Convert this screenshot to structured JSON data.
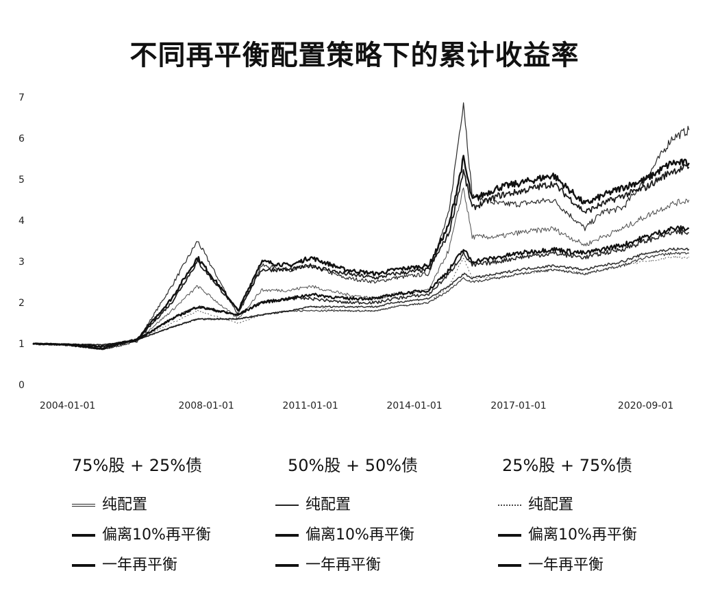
{
  "title": "不同再平衡配置策略下的累计收益率",
  "chart_data": {
    "type": "line",
    "title": "不同再平衡配置策略下的累计收益率",
    "xlabel": "",
    "ylabel": "",
    "ylim": [
      0,
      7
    ],
    "yticks": [
      "0",
      "1",
      "2",
      "3",
      "4",
      "5",
      "6",
      "7"
    ],
    "xticks": [
      "2004-01-01",
      "2008-01-01",
      "2011-01-01",
      "2014-01-01",
      "2017-01-01",
      "2020-09-01"
    ],
    "x_range": [
      "2003-01-01",
      "2021-12-31"
    ],
    "grid": false,
    "legend_placement": "bottom",
    "x": [
      "2003-01",
      "2004-01",
      "2005-01",
      "2006-01",
      "2007-01",
      "2007-10",
      "2008-12",
      "2009-08",
      "2010-06",
      "2011-01",
      "2012-01",
      "2012-12",
      "2013-06",
      "2014-06",
      "2015-01",
      "2015-06",
      "2015-09",
      "2016-06",
      "2017-01",
      "2018-01",
      "2018-12",
      "2019-06",
      "2020-01",
      "2020-09",
      "2021-06",
      "2021-12"
    ],
    "groups": [
      {
        "label": "75%股 + 25%债",
        "series": [
          {
            "name": "纯配置",
            "values": [
              1.0,
              0.97,
              0.85,
              1.05,
              2.4,
              3.5,
              1.7,
              2.9,
              2.8,
              2.9,
              2.6,
              2.5,
              2.6,
              2.7,
              4.2,
              6.9,
              4.6,
              4.4,
              4.4,
              4.5,
              3.8,
              4.2,
              4.3,
              5.0,
              6.0,
              6.2
            ]
          },
          {
            "name": "偏离10%再平衡",
            "values": [
              1.0,
              0.97,
              0.88,
              1.1,
              2.1,
              3.1,
              1.8,
              3.0,
              2.9,
              3.1,
              2.8,
              2.7,
              2.8,
              2.9,
              3.9,
              5.5,
              4.5,
              4.8,
              4.9,
              5.1,
              4.4,
              4.6,
              4.8,
              5.0,
              5.4,
              5.4
            ]
          },
          {
            "name": "一年再平衡",
            "values": [
              1.0,
              0.97,
              0.88,
              1.08,
              2.0,
              3.0,
              1.8,
              2.8,
              2.8,
              2.9,
              2.7,
              2.6,
              2.7,
              2.8,
              3.7,
              5.2,
              4.3,
              4.6,
              4.7,
              4.9,
              4.2,
              4.4,
              4.6,
              4.8,
              5.2,
              5.3
            ]
          }
        ]
      },
      {
        "label": "50%股 + 50%债",
        "series": [
          {
            "name": "纯配置",
            "values": [
              1.0,
              0.98,
              0.9,
              1.08,
              1.8,
              2.4,
              1.6,
              2.3,
              2.3,
              2.4,
              2.2,
              2.1,
              2.2,
              2.3,
              3.3,
              4.8,
              3.6,
              3.6,
              3.7,
              3.8,
              3.4,
              3.6,
              3.8,
              4.1,
              4.4,
              4.5
            ]
          },
          {
            "name": "偏离10%再平衡",
            "values": [
              1.0,
              0.98,
              0.93,
              1.1,
              1.6,
              1.9,
              1.7,
              2.0,
              2.1,
              2.2,
              2.1,
              2.1,
              2.2,
              2.3,
              2.8,
              3.3,
              3.0,
              3.1,
              3.2,
              3.3,
              3.2,
              3.3,
              3.4,
              3.6,
              3.8,
              3.8
            ]
          },
          {
            "name": "一年再平衡",
            "values": [
              1.0,
              0.98,
              0.92,
              1.09,
              1.6,
              1.9,
              1.7,
              2.0,
              2.1,
              2.1,
              2.0,
              2.0,
              2.1,
              2.2,
              2.7,
              3.2,
              2.9,
              3.0,
              3.1,
              3.2,
              3.1,
              3.2,
              3.3,
              3.5,
              3.7,
              3.7
            ]
          }
        ]
      },
      {
        "label": "25%股 + 75%债",
        "series": [
          {
            "name": "纯配置",
            "values": [
              1.0,
              0.99,
              0.95,
              1.08,
              1.5,
              1.8,
              1.5,
              1.7,
              1.8,
              1.9,
              1.8,
              1.8,
              1.9,
              2.0,
              2.4,
              3.1,
              2.6,
              2.6,
              2.7,
              2.8,
              2.7,
              2.8,
              2.9,
              3.0,
              3.1,
              3.1
            ]
          },
          {
            "name": "偏离10%再平衡",
            "values": [
              1.0,
              0.99,
              0.97,
              1.09,
              1.4,
              1.6,
              1.6,
              1.7,
              1.8,
              1.9,
              1.9,
              1.9,
              2.0,
              2.1,
              2.4,
              2.7,
              2.6,
              2.7,
              2.8,
              2.9,
              2.8,
              2.9,
              3.0,
              3.2,
              3.3,
              3.3
            ]
          },
          {
            "name": "一年再平衡",
            "values": [
              1.0,
              0.99,
              0.97,
              1.09,
              1.4,
              1.6,
              1.6,
              1.7,
              1.8,
              1.8,
              1.8,
              1.8,
              1.9,
              2.0,
              2.3,
              2.6,
              2.5,
              2.6,
              2.7,
              2.8,
              2.7,
              2.8,
              2.9,
              3.1,
              3.2,
              3.2
            ]
          }
        ]
      }
    ]
  },
  "legend": {
    "groups": [
      {
        "head": "75%股 + 25%债",
        "items": [
          "纯配置",
          "偏离10%再平衡",
          "一年再平衡"
        ]
      },
      {
        "head": "50%股 + 50%债",
        "items": [
          "纯配置",
          "偏离10%再平衡",
          "一年再平衡"
        ]
      },
      {
        "head": "25%股 + 75%债",
        "items": [
          "纯配置",
          "偏离10%再平衡",
          "一年再平衡"
        ]
      }
    ]
  },
  "colors": {
    "line": "#111111",
    "background": "#ffffff"
  }
}
